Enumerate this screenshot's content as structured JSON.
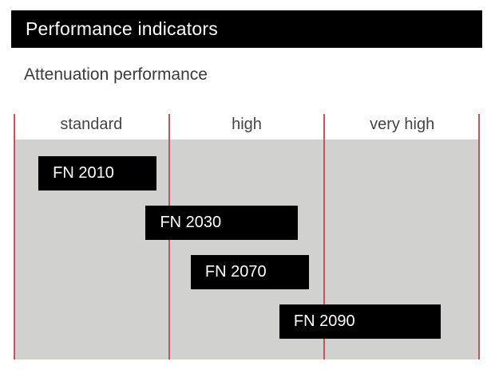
{
  "page": {
    "title": "Performance indicators",
    "subtitle": "Attenuation performance"
  },
  "colors": {
    "title_bar_bg": "#000000",
    "title_text": "#ffffff",
    "subtitle_text": "#3a3a3a",
    "band_bg": "#d1d1cf",
    "separator_line": "#c4535b",
    "bar_bg": "#000000",
    "bar_text": "#ffffff",
    "column_label_text": "#444444",
    "page_bg": "#ffffff"
  },
  "chart_data": {
    "type": "bar",
    "orientation": "horizontal-range",
    "title": "Attenuation performance",
    "categories": [
      "standard",
      "high",
      "very high"
    ],
    "x_axis_unit": "category index (0 = start of 'standard', 3 = end of 'very high')",
    "xlim": [
      0,
      3
    ],
    "grid": "vertical category separator lines only",
    "legend": "none",
    "bars": [
      {
        "label": "FN 2010",
        "x_start": 0.16,
        "x_end": 0.92,
        "covers": [
          "standard"
        ]
      },
      {
        "label": "FN 2030",
        "x_start": 0.85,
        "x_end": 1.83,
        "covers": [
          "standard",
          "high"
        ]
      },
      {
        "label": "FN 2070",
        "x_start": 1.14,
        "x_end": 1.9,
        "covers": [
          "high"
        ]
      },
      {
        "label": "FN 2090",
        "x_start": 1.71,
        "x_end": 2.75,
        "covers": [
          "high",
          "very high"
        ]
      }
    ]
  }
}
